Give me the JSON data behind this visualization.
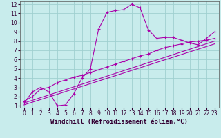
{
  "xlabel": "Windchill (Refroidissement éolien,°C)",
  "bg_color": "#c8ecec",
  "grid_color": "#a0d0d0",
  "line_color": "#aa00aa",
  "xlim": [
    -0.5,
    23.5
  ],
  "ylim": [
    0.8,
    12.3
  ],
  "xticks": [
    0,
    1,
    2,
    3,
    4,
    5,
    6,
    7,
    8,
    9,
    10,
    11,
    12,
    13,
    14,
    15,
    16,
    17,
    18,
    19,
    20,
    21,
    22,
    23
  ],
  "yticks": [
    1,
    2,
    3,
    4,
    5,
    6,
    7,
    8,
    9,
    10,
    11,
    12
  ],
  "series": [
    {
      "x": [
        0,
        1,
        2,
        3,
        4,
        5,
        6,
        7,
        8,
        9,
        10,
        11,
        12,
        13,
        14,
        15,
        16,
        17,
        18,
        19,
        20,
        21,
        22,
        23
      ],
      "y": [
        1.3,
        2.5,
        3.0,
        2.5,
        1.0,
        1.1,
        2.3,
        4.0,
        5.0,
        9.3,
        11.1,
        11.3,
        11.4,
        12.0,
        11.6,
        9.2,
        8.3,
        8.4,
        8.4,
        8.1,
        7.8,
        7.6,
        8.3,
        9.0
      ],
      "marker": "+"
    },
    {
      "x": [
        0,
        1,
        2,
        3,
        4,
        5,
        6,
        7,
        8,
        9,
        10,
        11,
        12,
        13,
        14,
        15,
        16,
        17,
        18,
        19,
        20,
        21,
        22,
        23
      ],
      "y": [
        1.5,
        2.0,
        2.8,
        3.0,
        3.5,
        3.8,
        4.1,
        4.3,
        4.6,
        4.9,
        5.2,
        5.5,
        5.8,
        6.1,
        6.4,
        6.6,
        7.0,
        7.3,
        7.5,
        7.7,
        7.9,
        8.0,
        8.1,
        8.3
      ],
      "marker": "+"
    },
    {
      "x": [
        0,
        23
      ],
      "y": [
        1.3,
        8.0
      ],
      "marker": null
    },
    {
      "x": [
        0,
        23
      ],
      "y": [
        1.1,
        7.7
      ],
      "marker": null
    }
  ],
  "tick_fontsize": 5.5,
  "label_fontsize": 6.5
}
